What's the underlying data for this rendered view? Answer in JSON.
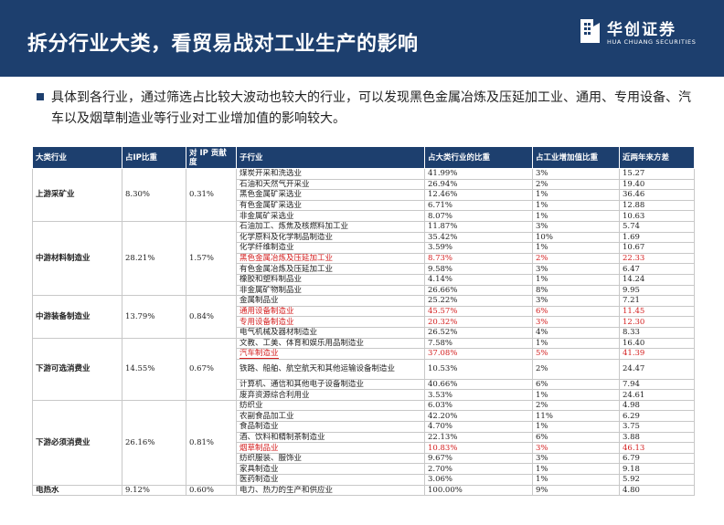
{
  "header": {
    "title": "拆分行业大类，看贸易战对工业生产的影响",
    "logo_cn": "华创证券",
    "logo_en": "HUA CHUANG SECURITIES"
  },
  "bullet": {
    "text": "具体到各行业，通过筛选占比较大波动也较大的行业，可以发现黑色金属冶炼及压延加工业、通用、专用设备、汽车以及烟草制造业等行业对工业增加值的影响较大。"
  },
  "table": {
    "headers": [
      "大类行业",
      "占IP比重",
      "对 IP 贡献度",
      "子行业",
      "占大类行业的比重",
      "占工业增加值比重",
      "近两年来方差"
    ],
    "groups": [
      {
        "category": "上游采矿业",
        "ip_share": "8.30%",
        "ip_contribution": "0.31%",
        "rows": [
          {
            "sub": "煤炭开采和洗选业",
            "share_in_category": "41.99%",
            "share_in_value_added": "3%",
            "variance": "15.27",
            "highlight": false
          },
          {
            "sub": "石油和天然气开采业",
            "share_in_category": "26.94%",
            "share_in_value_added": "2%",
            "variance": "19.40",
            "highlight": false
          },
          {
            "sub": "黑色金属矿采选业",
            "share_in_category": "12.46%",
            "share_in_value_added": "1%",
            "variance": "36.46",
            "highlight": false
          },
          {
            "sub": "有色金属矿采选业",
            "share_in_category": "6.71%",
            "share_in_value_added": "1%",
            "variance": "12.88",
            "highlight": false
          },
          {
            "sub": "非金属矿采选业",
            "share_in_category": "8.07%",
            "share_in_value_added": "1%",
            "variance": "10.63",
            "highlight": false
          }
        ]
      },
      {
        "category": "中游材料制造业",
        "ip_share": "28.21%",
        "ip_contribution": "1.57%",
        "rows": [
          {
            "sub": "石油加工、炼焦及核燃料加工业",
            "share_in_category": "11.87%",
            "share_in_value_added": "3%",
            "variance": "5.74",
            "highlight": false
          },
          {
            "sub": "化学原料及化学制品制造业",
            "share_in_category": "35.42%",
            "share_in_value_added": "10%",
            "variance": "1.69",
            "highlight": false
          },
          {
            "sub": "化学纤维制造业",
            "share_in_category": "3.59%",
            "share_in_value_added": "1%",
            "variance": "10.67",
            "highlight": false
          },
          {
            "sub": "黑色金属冶炼及压延加工业",
            "share_in_category": "8.73%",
            "share_in_value_added": "2%",
            "variance": "22.33",
            "highlight": true
          },
          {
            "sub": "有色金属冶炼及压延加工业",
            "share_in_category": "9.58%",
            "share_in_value_added": "3%",
            "variance": "6.47",
            "highlight": false
          },
          {
            "sub": "橡胶和塑料制品业",
            "share_in_category": "4.14%",
            "share_in_value_added": "1%",
            "variance": "14.24",
            "highlight": false
          },
          {
            "sub": "非金属矿物制品业",
            "share_in_category": "26.66%",
            "share_in_value_added": "8%",
            "variance": "9.95",
            "highlight": false
          }
        ]
      },
      {
        "category": "中游装备制造业",
        "ip_share": "13.79%",
        "ip_contribution": "0.84%",
        "rows": [
          {
            "sub": "金属制品业",
            "share_in_category": "25.22%",
            "share_in_value_added": "3%",
            "variance": "7.21",
            "highlight": false
          },
          {
            "sub": "通用设备制造业",
            "share_in_category": "45.57%",
            "share_in_value_added": "6%",
            "variance": "11.45",
            "highlight": true
          },
          {
            "sub": "专用设备制造业",
            "share_in_category": "20.32%",
            "share_in_value_added": "3%",
            "variance": "12.30",
            "highlight": true
          },
          {
            "sub": "电气机械及器材制造业",
            "share_in_category": "26.52%",
            "share_in_value_added": "4%",
            "variance": "8.33",
            "highlight": false
          }
        ]
      },
      {
        "category": "下游可选消费业",
        "ip_share": "14.55%",
        "ip_contribution": "0.67%",
        "rows": [
          {
            "sub": "文教、工美、体育和娱乐用品制造业",
            "share_in_category": "7.58%",
            "share_in_value_added": "1%",
            "variance": "16.40",
            "highlight": false
          },
          {
            "sub": "汽车制造业",
            "share_in_category": "37.08%",
            "share_in_value_added": "5%",
            "variance": "41.39",
            "highlight": true
          },
          {
            "sub": "铁路、船舶、航空航天和其他运输设备制造业",
            "share_in_category": "10.53%",
            "share_in_value_added": "2%",
            "variance": "24.47",
            "highlight": false,
            "wrap": true
          },
          {
            "sub": "计算机、通信和其他电子设备制造业",
            "share_in_category": "40.66%",
            "share_in_value_added": "6%",
            "variance": "7.94",
            "highlight": false
          },
          {
            "sub": "废弃资源综合利用业",
            "share_in_category": "3.53%",
            "share_in_value_added": "1%",
            "variance": "24.61",
            "highlight": false
          }
        ]
      },
      {
        "category": "下游必须消费业",
        "ip_share": "26.16%",
        "ip_contribution": "0.81%",
        "rows": [
          {
            "sub": "纺织业",
            "share_in_category": "6.03%",
            "share_in_value_added": "2%",
            "variance": "4.98",
            "highlight": false
          },
          {
            "sub": "农副食品加工业",
            "share_in_category": "42.20%",
            "share_in_value_added": "11%",
            "variance": "6.29",
            "highlight": false
          },
          {
            "sub": "食品制造业",
            "share_in_category": "4.70%",
            "share_in_value_added": "1%",
            "variance": "3.75",
            "highlight": false
          },
          {
            "sub": "酒、饮料和精制茶制造业",
            "share_in_category": "22.13%",
            "share_in_value_added": "6%",
            "variance": "3.88",
            "highlight": false
          },
          {
            "sub": "烟草制品业",
            "share_in_category": "10.83%",
            "share_in_value_added": "3%",
            "variance": "46.13",
            "highlight": true
          },
          {
            "sub": "纺织服装、服饰业",
            "share_in_category": "9.67%",
            "share_in_value_added": "3%",
            "variance": "6.79",
            "highlight": false
          },
          {
            "sub": "家具制造业",
            "share_in_category": "2.70%",
            "share_in_value_added": "1%",
            "variance": "9.18",
            "highlight": false
          },
          {
            "sub": "医药制造业",
            "share_in_category": "3.06%",
            "share_in_value_added": "1%",
            "variance": "5.92",
            "highlight": false
          }
        ]
      },
      {
        "category": "电热水",
        "ip_share": "9.12%",
        "ip_contribution": "0.60%",
        "rows": [
          {
            "sub": "电力、热力的生产和供应业",
            "share_in_category": "100.00%",
            "share_in_value_added": "9%",
            "variance": "4.80",
            "highlight": false
          }
        ]
      }
    ]
  },
  "colors": {
    "header_bg": "#1d3f6e",
    "highlight_text": "#d42020",
    "grid": "#c8c8c8"
  }
}
